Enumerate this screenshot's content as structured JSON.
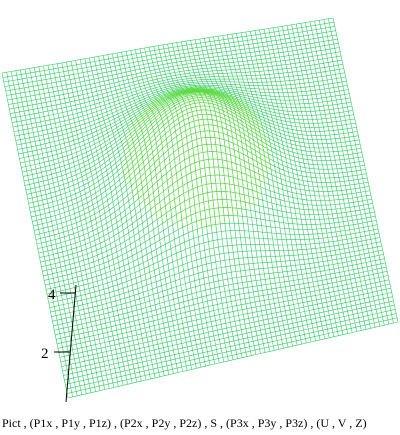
{
  "surface": {
    "mesh_color": "#33cc66",
    "peak_color": "#66dd33",
    "grid_divisions": 72,
    "peak_height": 2.2
  },
  "axis": {
    "tick_labels": [
      "2",
      "4"
    ],
    "color": "#000000"
  },
  "caption": {
    "text": "Pict , (P1x , P1y , P1z) , (P2x , P2y , P2z) , S , (P3x , P3y , P3z) , (U , V , Z)"
  }
}
